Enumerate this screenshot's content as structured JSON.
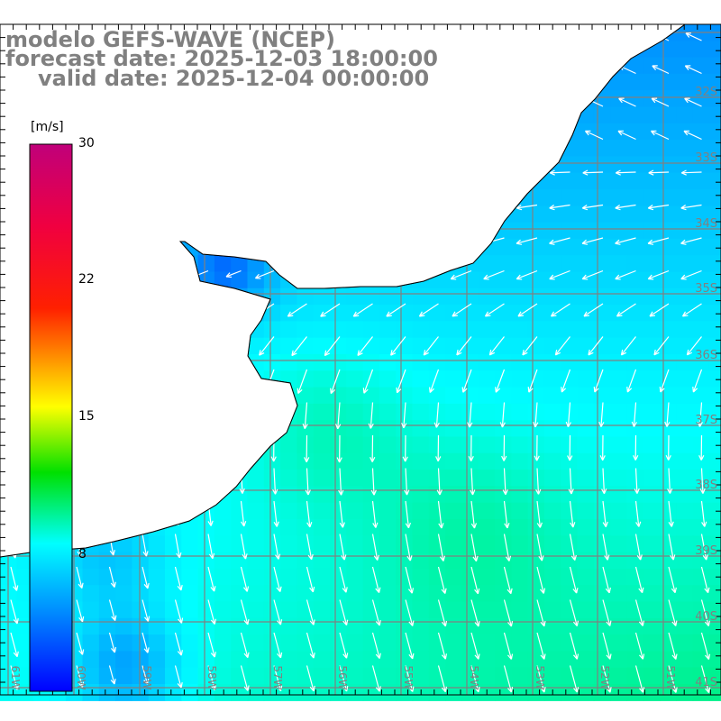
{
  "title": {
    "line1": "modelo GEFS-WAVE (NCEP)",
    "line2": "forecast date: 2025-12-03 18:00:00",
    "line3": "valid date: 2025-12-04 00:00:00"
  },
  "colorbar": {
    "unit": "[m/s]",
    "ticks": [
      "30",
      "22",
      "15",
      "8"
    ],
    "tick_values": [
      30,
      22,
      15,
      8
    ],
    "min": 0,
    "max": 30,
    "stops": [
      "#0000ff",
      "#00aaff",
      "#00ffff",
      "#00ff00",
      "#ffff00",
      "#ff0000",
      "#c0007a"
    ]
  },
  "map": {
    "lat_labels": [
      "32S",
      "33S",
      "34S",
      "35S",
      "36S",
      "37S",
      "38S",
      "39S",
      "40S",
      "41S"
    ],
    "lon_labels": [
      "61W",
      "60W",
      "59W",
      "58W",
      "57W",
      "56W",
      "55W",
      "54W",
      "53W",
      "52W",
      "51W"
    ],
    "land_color": "#ffffff",
    "grid_color": "#808080",
    "coast_color": "#000000",
    "arrow_color": "#ffffff"
  }
}
